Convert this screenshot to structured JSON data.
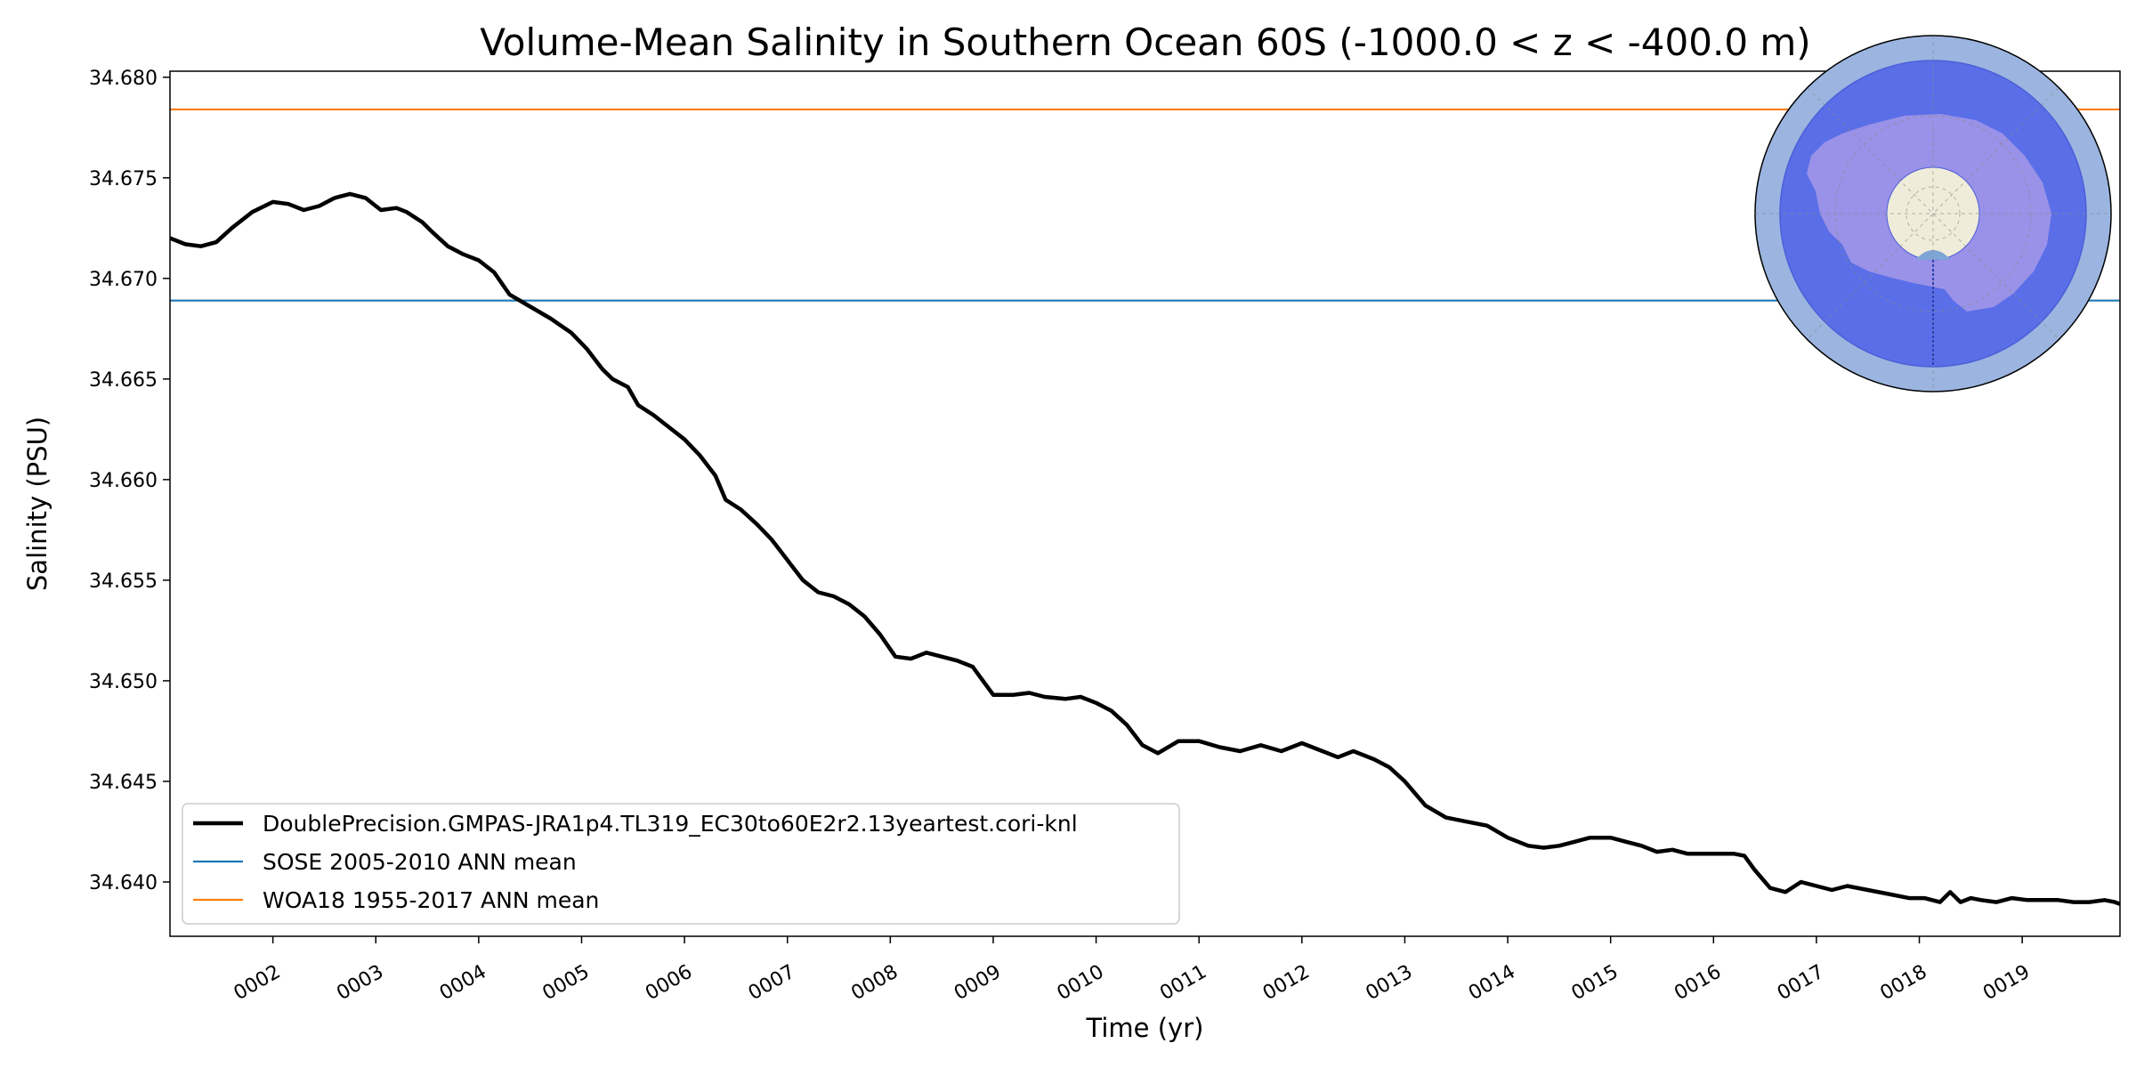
{
  "chart_data": {
    "type": "line",
    "title": "Volume-Mean Salinity in Southern Ocean 60S (-1000.0 < z < -400.0 m)",
    "xlabel": "Time (yr)",
    "ylabel": "Salinity (PSU)",
    "xlim": [
      1.0,
      19.95
    ],
    "ylim": [
      34.6373,
      34.6803
    ],
    "x_ticks": [
      2,
      3,
      4,
      5,
      6,
      7,
      8,
      9,
      10,
      11,
      12,
      13,
      14,
      15,
      16,
      17,
      18,
      19
    ],
    "x_tick_labels": [
      "0002",
      "0003",
      "0004",
      "0005",
      "0006",
      "0007",
      "0008",
      "0009",
      "0010",
      "0011",
      "0012",
      "0013",
      "0014",
      "0015",
      "0016",
      "0017",
      "0018",
      "0019"
    ],
    "y_ticks": [
      34.64,
      34.645,
      34.65,
      34.655,
      34.66,
      34.665,
      34.67,
      34.675,
      34.68
    ],
    "y_tick_labels": [
      "34.640",
      "34.645",
      "34.650",
      "34.655",
      "34.660",
      "34.665",
      "34.670",
      "34.675",
      "34.680"
    ],
    "series": [
      {
        "name": "DoublePrecision.GMPAS-JRA1p4.TL319_EC30to60E2r2.13yeartest.cori-knl",
        "color": "#000000",
        "x": [
          1.0,
          1.15,
          1.3,
          1.45,
          1.6,
          1.8,
          2.0,
          2.15,
          2.3,
          2.45,
          2.6,
          2.75,
          2.9,
          3.05,
          3.2,
          3.3,
          3.45,
          3.55,
          3.7,
          3.85,
          4.0,
          4.15,
          4.3,
          4.5,
          4.7,
          4.9,
          5.05,
          5.2,
          5.3,
          5.45,
          5.55,
          5.7,
          5.85,
          6.0,
          6.15,
          6.3,
          6.4,
          6.55,
          6.7,
          6.85,
          7.0,
          7.15,
          7.3,
          7.45,
          7.6,
          7.75,
          7.9,
          8.05,
          8.2,
          8.35,
          8.5,
          8.65,
          8.8,
          9.0,
          9.2,
          9.35,
          9.5,
          9.7,
          9.85,
          10.0,
          10.15,
          10.3,
          10.45,
          10.6,
          10.8,
          11.0,
          11.2,
          11.4,
          11.6,
          11.8,
          12.0,
          12.2,
          12.35,
          12.5,
          12.7,
          12.85,
          13.0,
          13.2,
          13.4,
          13.6,
          13.8,
          14.0,
          14.2,
          14.35,
          14.5,
          14.65,
          14.8,
          15.0,
          15.15,
          15.3,
          15.45,
          15.6,
          15.75,
          15.9,
          16.05,
          16.2,
          16.3,
          16.4,
          16.55,
          16.7,
          16.85,
          17.0,
          17.15,
          17.3,
          17.5,
          17.7,
          17.9,
          18.05,
          18.2,
          18.3,
          18.4,
          18.5,
          18.6,
          18.75,
          18.9,
          19.05,
          19.2,
          19.35,
          19.5,
          19.65,
          19.8,
          19.9,
          19.95
        ],
        "values": [
          34.672,
          34.6717,
          34.6716,
          34.6718,
          34.6725,
          34.6733,
          34.6738,
          34.6737,
          34.6734,
          34.6736,
          34.674,
          34.6742,
          34.674,
          34.6734,
          34.6735,
          34.6733,
          34.6728,
          34.6723,
          34.6716,
          34.6712,
          34.6709,
          34.6703,
          34.6692,
          34.6686,
          34.668,
          34.6673,
          34.6665,
          34.6655,
          34.665,
          34.6646,
          34.6637,
          34.6632,
          34.6626,
          34.662,
          34.6612,
          34.6602,
          34.659,
          34.6585,
          34.6578,
          34.657,
          34.656,
          34.655,
          34.6544,
          34.6542,
          34.6538,
          34.6532,
          34.6523,
          34.6512,
          34.6511,
          34.6514,
          34.6512,
          34.651,
          34.6507,
          34.6493,
          34.6493,
          34.6494,
          34.6492,
          34.6491,
          34.6492,
          34.6489,
          34.6485,
          34.6478,
          34.6468,
          34.6464,
          34.647,
          34.647,
          34.6467,
          34.6465,
          34.6468,
          34.6465,
          34.6469,
          34.6465,
          34.6462,
          34.6465,
          34.6461,
          34.6457,
          34.645,
          34.6438,
          34.6432,
          34.643,
          34.6428,
          34.6422,
          34.6418,
          34.6417,
          34.6418,
          34.642,
          34.6422,
          34.6422,
          34.642,
          34.6418,
          34.6415,
          34.6416,
          34.6414,
          34.6414,
          34.6414,
          34.6414,
          34.6413,
          34.6406,
          34.6397,
          34.6395,
          34.64,
          34.6398,
          34.6396,
          34.6398,
          34.6396,
          34.6394,
          34.6392,
          34.6392,
          34.639,
          34.6395,
          34.639,
          34.6392,
          34.6391,
          34.639,
          34.6392,
          34.6391,
          34.6391,
          34.6391,
          34.639,
          34.639,
          34.6391,
          34.639,
          34.6389
        ]
      },
      {
        "name": "SOSE 2005-2010 ANN mean",
        "color": "#1f77b4",
        "constant": 34.6689
      },
      {
        "name": "WOA18 1955-2017 ANN mean",
        "color": "#ff7f0e",
        "constant": 34.6784
      }
    ],
    "legend_position": "lower-left",
    "inset": "south-polar-map-antarctica"
  }
}
